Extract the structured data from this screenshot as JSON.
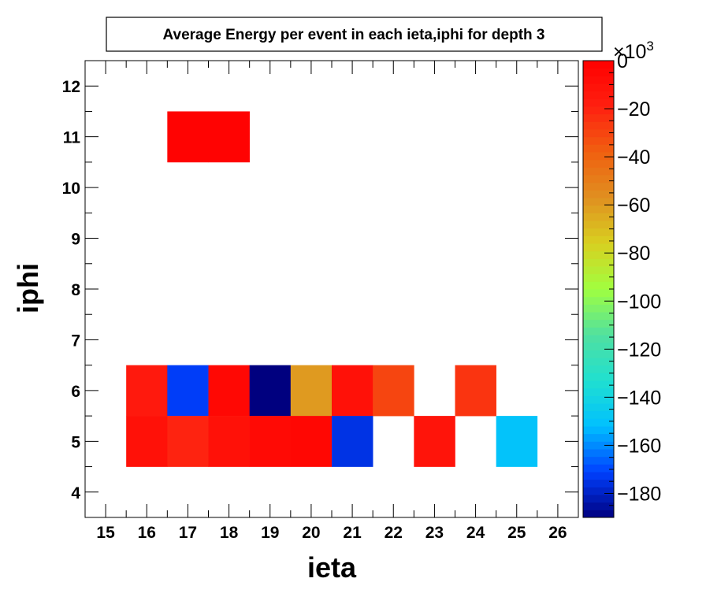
{
  "chart_data": {
    "type": "heatmap",
    "title": "Average Energy per event in each ieta,iphi for depth 3",
    "xlabel": "ieta",
    "ylabel": "iphi",
    "xlim": [
      14.5,
      26.5
    ],
    "ylim": [
      3.5,
      12.5
    ],
    "x_ticks": [
      "15",
      "16",
      "17",
      "18",
      "19",
      "20",
      "21",
      "22",
      "23",
      "24",
      "25",
      "26"
    ],
    "y_ticks": [
      "4",
      "5",
      "6",
      "7",
      "8",
      "9",
      "10",
      "11",
      "12"
    ],
    "color_scale": {
      "min": -190,
      "max": 0,
      "multiplier_label": "×10",
      "multiplier_exponent": "3",
      "ticks": [
        "0",
        "−20",
        "−40",
        "−60",
        "−80",
        "−100",
        "−120",
        "−140",
        "−160",
        "−180"
      ],
      "tick_values": [
        0,
        -20,
        -40,
        -60,
        -80,
        -100,
        -120,
        -140,
        -160,
        -180
      ],
      "palette": [
        "#00007f",
        "#0040ff",
        "#00c0ff",
        "#20e0d0",
        "#50e0a0",
        "#a0ff40",
        "#d8d020",
        "#e09020",
        "#f06010",
        "#ff2010",
        "#ff0000"
      ]
    },
    "cells": [
      {
        "ieta": 17,
        "iphi": 11,
        "value": -2
      },
      {
        "ieta": 18,
        "iphi": 11,
        "value": -2
      },
      {
        "ieta": 16,
        "iphi": 6,
        "value": -15
      },
      {
        "ieta": 17,
        "iphi": 6,
        "value": -172
      },
      {
        "ieta": 18,
        "iphi": 6,
        "value": -5
      },
      {
        "ieta": 19,
        "iphi": 6,
        "value": -190
      },
      {
        "ieta": 20,
        "iphi": 6,
        "value": -60
      },
      {
        "ieta": 21,
        "iphi": 6,
        "value": -10
      },
      {
        "ieta": 22,
        "iphi": 6,
        "value": -30
      },
      {
        "ieta": 24,
        "iphi": 6,
        "value": -25
      },
      {
        "ieta": 16,
        "iphi": 5,
        "value": -10
      },
      {
        "ieta": 17,
        "iphi": 5,
        "value": -20
      },
      {
        "ieta": 18,
        "iphi": 5,
        "value": -10
      },
      {
        "ieta": 19,
        "iphi": 5,
        "value": -6
      },
      {
        "ieta": 20,
        "iphi": 5,
        "value": -4
      },
      {
        "ieta": 21,
        "iphi": 5,
        "value": -175
      },
      {
        "ieta": 23,
        "iphi": 5,
        "value": -12
      },
      {
        "ieta": 25,
        "iphi": 5,
        "value": -150
      }
    ]
  }
}
